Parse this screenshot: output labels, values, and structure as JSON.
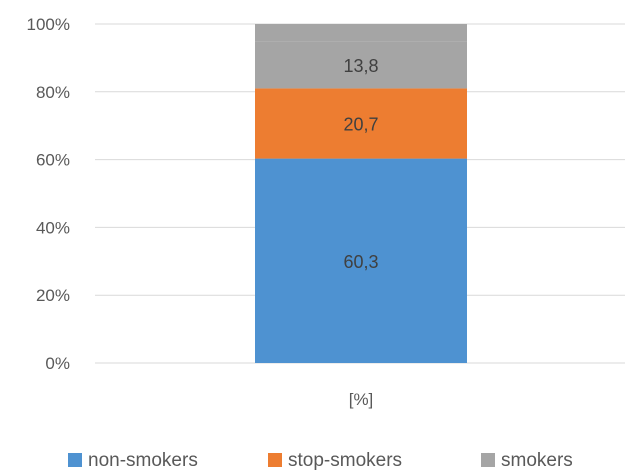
{
  "chart_data": {
    "type": "bar",
    "stacked": true,
    "percent_stacked": true,
    "categories": [
      "[%]"
    ],
    "series": [
      {
        "name": "non-smokers",
        "values": [
          60.3
        ],
        "label": "60,3",
        "color": "#4e92d1"
      },
      {
        "name": "stop-smokers",
        "values": [
          20.7
        ],
        "label": "20,7",
        "color": "#ed7d31"
      },
      {
        "name": "smokers",
        "values": [
          13.8
        ],
        "label": "13,8",
        "color": "#a5a5a5"
      }
    ],
    "ylim": [
      0,
      100
    ],
    "yticks": [
      {
        "value": 0,
        "label": "0%"
      },
      {
        "value": 20,
        "label": "20%"
      },
      {
        "value": 40,
        "label": "40%"
      },
      {
        "value": 60,
        "label": "60%"
      },
      {
        "value": 80,
        "label": "80%"
      },
      {
        "value": 100,
        "label": "100%"
      }
    ],
    "grid": true,
    "gridline_color": "#d9d9d9",
    "legend_position": "bottom",
    "title": "",
    "xlabel": "",
    "ylabel": ""
  }
}
